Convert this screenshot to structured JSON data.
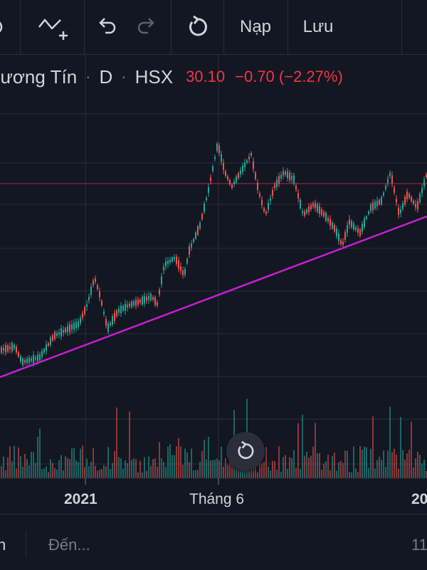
{
  "toolbar": {
    "load_label": "Nạp",
    "save_label": "Lưu"
  },
  "symbol": {
    "name": "hương Tín",
    "interval": "D",
    "exchange": "HSX",
    "price": "30.10",
    "change": "−0.70 (−2.27%)"
  },
  "xaxis": {
    "label_2021": "2021",
    "label_june": "Tháng 6",
    "label_partial": "20"
  },
  "bottom": {
    "left_partial": "n",
    "to_label": "Đến...",
    "right_partial": "11"
  },
  "colors": {
    "background": "#131722",
    "up": "#26a69a",
    "down": "#ef5350",
    "trendline": "#c71fd3",
    "price_line": "#f23645",
    "grid": "#2a2e39"
  },
  "chart_data": {
    "type": "candlestick",
    "note_visible": "daily candles with volume histogram and a magenta rising trendline",
    "x": [
      "2021",
      "Tháng 6",
      "20"
    ],
    "series": []
  }
}
